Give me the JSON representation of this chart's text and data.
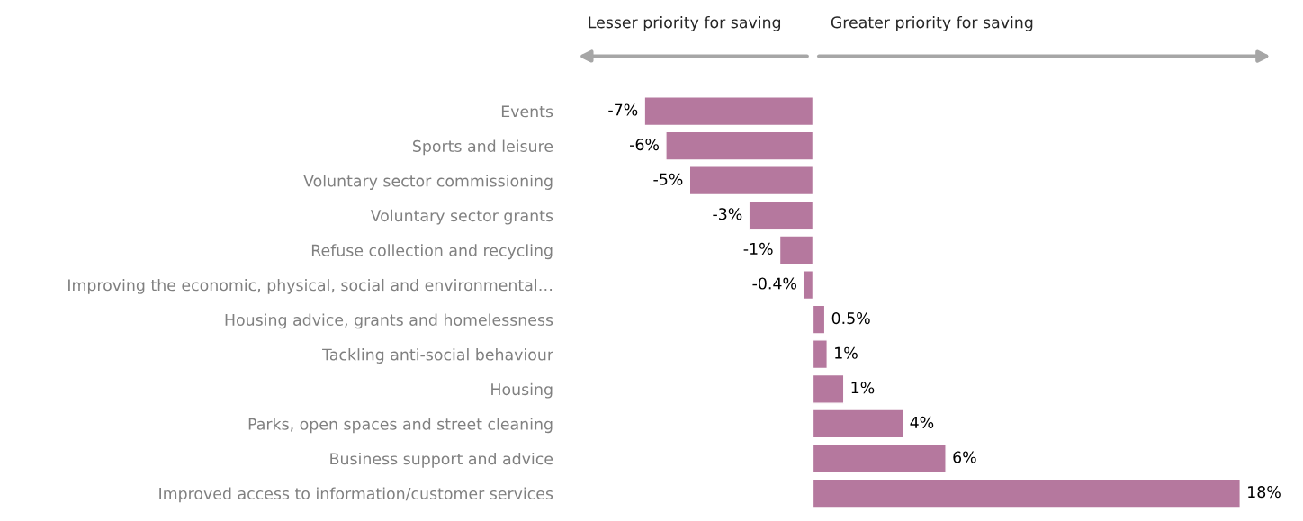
{
  "chart_data": {
    "type": "bar",
    "orientation": "horizontal",
    "categories": [
      "Events",
      "Sports and leisure",
      "Voluntary sector commissioning",
      "Voluntary sector grants",
      "Refuse collection and recycling",
      "Improving the economic, physical, social and environmental…",
      "Housing advice, grants and homelessness",
      "Tackling anti-social behaviour",
      "Housing",
      "Parks, open spaces and street cleaning",
      "Business support and advice",
      "Improved access to information/customer services"
    ],
    "values": [
      -7.1,
      -6.2,
      -5.2,
      -2.7,
      -1.4,
      -0.4,
      0.5,
      0.6,
      1.3,
      3.8,
      5.6,
      18
    ],
    "value_labels": [
      "-7%",
      "-6%",
      "-5%",
      "-3%",
      "-1%",
      "-0.4%",
      "0.5%",
      "1%",
      "1%",
      "4%",
      "6%",
      "18%"
    ],
    "color": "#b5789e",
    "annotations": [
      "Lesser priority for saving",
      "Greater priority for saving"
    ],
    "grid": false,
    "legend": false
  }
}
